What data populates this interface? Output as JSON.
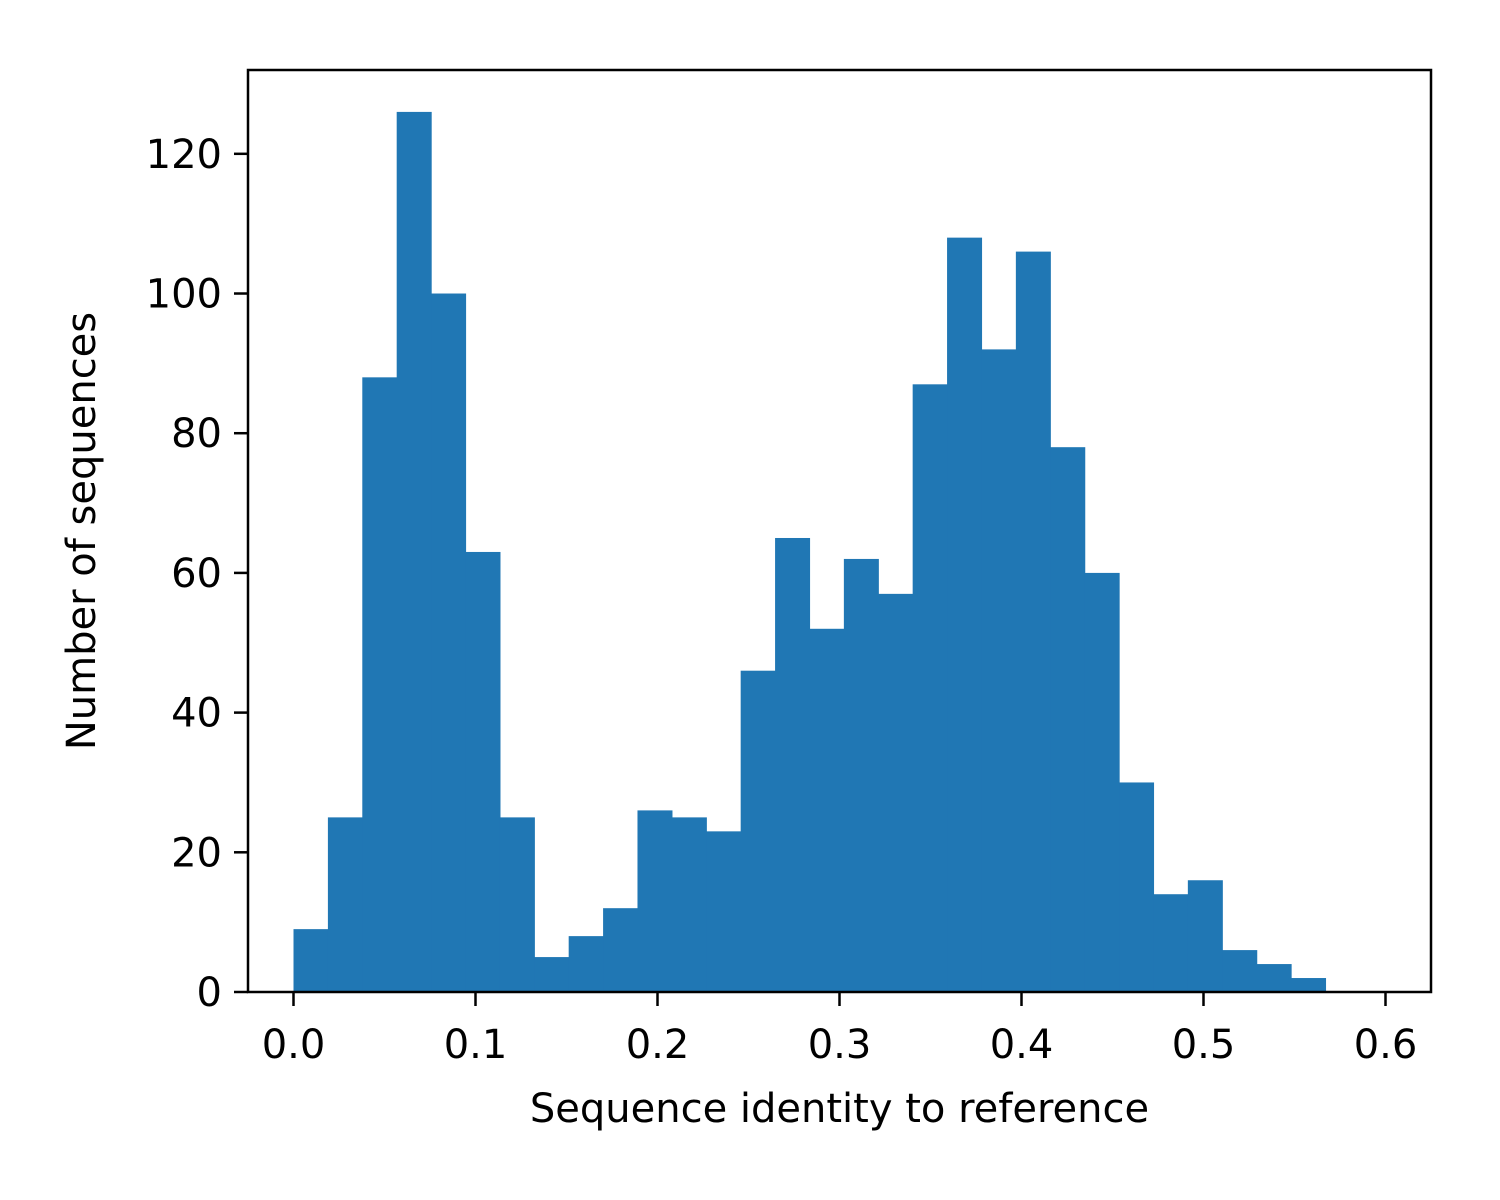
{
  "chart_data": {
    "type": "bar",
    "xlabel": "Sequence identity to reference",
    "ylabel": "Number of sequences",
    "xlim": [
      -0.025,
      0.625
    ],
    "ylim": [
      0,
      132
    ],
    "grid": false,
    "bar_color": "#2077b4",
    "bin_edges": [
      0.0,
      0.0189,
      0.0378,
      0.0567,
      0.0756,
      0.0945,
      0.1134,
      0.1323,
      0.1512,
      0.1701,
      0.189,
      0.2079,
      0.2268,
      0.2457,
      0.2646,
      0.2835,
      0.3024,
      0.3213,
      0.3402,
      0.3591,
      0.378,
      0.3969,
      0.4158,
      0.4347,
      0.4536,
      0.4725,
      0.4914,
      0.5103,
      0.5292,
      0.5481,
      0.567
    ],
    "values": [
      9,
      25,
      88,
      126,
      100,
      63,
      25,
      5,
      8,
      12,
      26,
      25,
      23,
      46,
      65,
      52,
      62,
      57,
      87,
      108,
      92,
      106,
      78,
      60,
      30,
      14,
      16,
      6,
      4,
      2
    ],
    "x_ticks": [
      {
        "value": 0.0,
        "label": "0.0"
      },
      {
        "value": 0.1,
        "label": "0.1"
      },
      {
        "value": 0.2,
        "label": "0.2"
      },
      {
        "value": 0.3,
        "label": "0.3"
      },
      {
        "value": 0.4,
        "label": "0.4"
      },
      {
        "value": 0.5,
        "label": "0.5"
      },
      {
        "value": 0.6,
        "label": "0.6"
      }
    ],
    "y_ticks": [
      {
        "value": 0,
        "label": "0"
      },
      {
        "value": 20,
        "label": "20"
      },
      {
        "value": 40,
        "label": "40"
      },
      {
        "value": 60,
        "label": "60"
      },
      {
        "value": 80,
        "label": "80"
      },
      {
        "value": 100,
        "label": "100"
      },
      {
        "value": 120,
        "label": "120"
      }
    ]
  }
}
